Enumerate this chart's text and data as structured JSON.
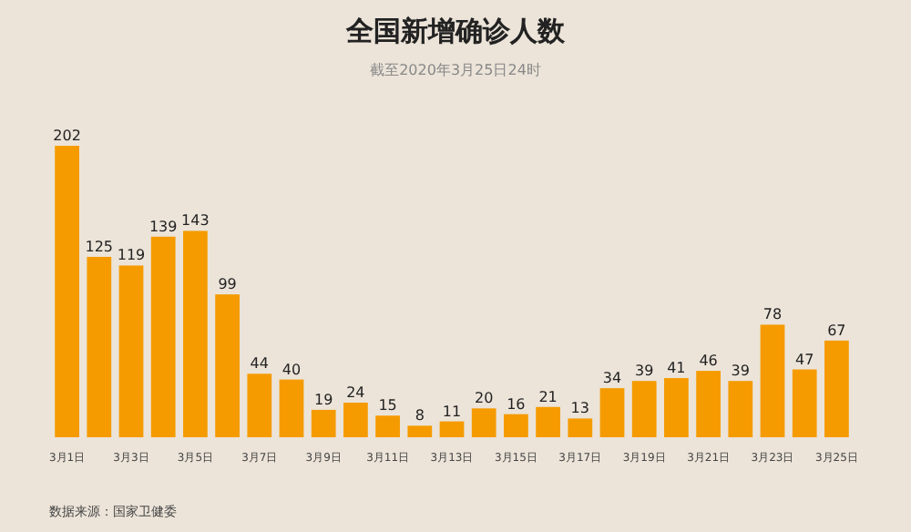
{
  "chart_data": {
    "type": "bar",
    "title": "全国新增确诊人数",
    "subtitle": "截至2020年3月25日24时",
    "categories": [
      "3月1日",
      null,
      "3月3日",
      null,
      "3月5日",
      null,
      "3月7日",
      null,
      "3月9日",
      null,
      "3月11日",
      null,
      "3月13日",
      null,
      "3月15日",
      null,
      "3月17日",
      null,
      "3月19日",
      null,
      "3月21日",
      null,
      "3月23日",
      null,
      "3月25日"
    ],
    "values": [
      202,
      125,
      119,
      139,
      143,
      99,
      44,
      40,
      19,
      24,
      15,
      8,
      11,
      20,
      16,
      21,
      13,
      34,
      39,
      41,
      46,
      39,
      78,
      47,
      67
    ],
    "color": "#f59b00",
    "data_labels": true,
    "annotations": [
      "数据来源：国家卫健委"
    ]
  }
}
